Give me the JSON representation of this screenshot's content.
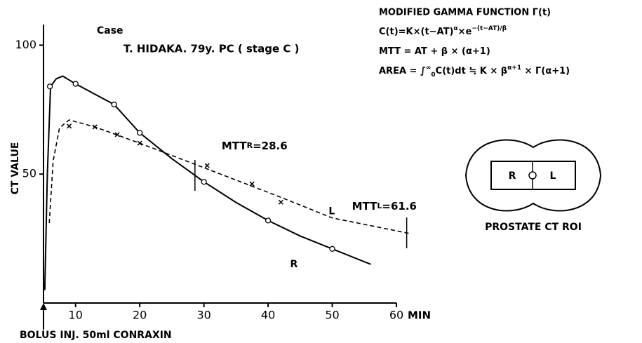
{
  "chart_data": {
    "type": "line",
    "title": "Case",
    "subtitle": "T. HIDAKA. 79y. PC ( stage C )",
    "ylabel": "CT VALUE",
    "xlabel": "MIN",
    "xlim": [
      5,
      60
    ],
    "ylim": [
      0,
      108
    ],
    "xticks": [
      10,
      20,
      30,
      40,
      50,
      60
    ],
    "yticks": [
      50,
      100
    ],
    "series": [
      {
        "name": "R",
        "color": "#000000",
        "marker": "circle",
        "dash": false,
        "x": [
          6,
          10,
          16,
          20,
          30,
          40,
          50
        ],
        "values": [
          84,
          85,
          77,
          66,
          47,
          32,
          21
        ],
        "fit_x": [
          5.2,
          5.6,
          6.1,
          7,
          8,
          10,
          13,
          16,
          20,
          25,
          30,
          35,
          40,
          45,
          50,
          56
        ],
        "fit_values": [
          5,
          50,
          84,
          87,
          88,
          85,
          81,
          77,
          66,
          56,
          47,
          39,
          32,
          26,
          21,
          15
        ]
      },
      {
        "name": "L",
        "color": "#000000",
        "marker": "cross",
        "dash": true,
        "x": [
          9,
          13,
          16.5,
          20,
          30.5,
          37.5,
          42
        ],
        "values": [
          68.6,
          68.3,
          65.3,
          62,
          53.3,
          46.2,
          39.1
        ],
        "fit_x": [
          5.9,
          6.5,
          7.5,
          9,
          13,
          20,
          30.5,
          42,
          50,
          62
        ],
        "fit_values": [
          31,
          55,
          68,
          71,
          68.3,
          62,
          52,
          41,
          33,
          27
        ]
      }
    ],
    "mtt": [
      {
        "label": "MTT",
        "sub": "R",
        "eq": "=",
        "value": 28.6,
        "series": 0
      },
      {
        "label": "MTT",
        "sub": "L",
        "eq": "=",
        "value": 61.6,
        "series": 1
      }
    ],
    "injection": "BOLUS INJ. 50ml CONRAXIN"
  },
  "formulas": {
    "heading": "MODIFIED GAMMA FUNCTION Γ(t)",
    "lines": [
      [
        {
          "text": "C(t)=K×(t−AT)"
        },
        {
          "text": "α",
          "sup": true
        },
        {
          "text": "×e"
        },
        {
          "text": "−(t−AT)/β",
          "sup": true
        }
      ],
      [
        {
          "text": "MTT = AT + β × (α+1)"
        }
      ],
      [
        {
          "text": "AREA = ∫"
        },
        {
          "text": "∞",
          "sup": true
        },
        {
          "text": "0",
          "sub": true
        },
        {
          "text": "C(t)dt ≒ K × β"
        },
        {
          "text": "α+1",
          "sup": true
        },
        {
          "text": " × Γ(α+1)"
        }
      ]
    ]
  },
  "roi": {
    "left": "R",
    "right": "L",
    "caption": "PROSTATE CT ROI"
  }
}
